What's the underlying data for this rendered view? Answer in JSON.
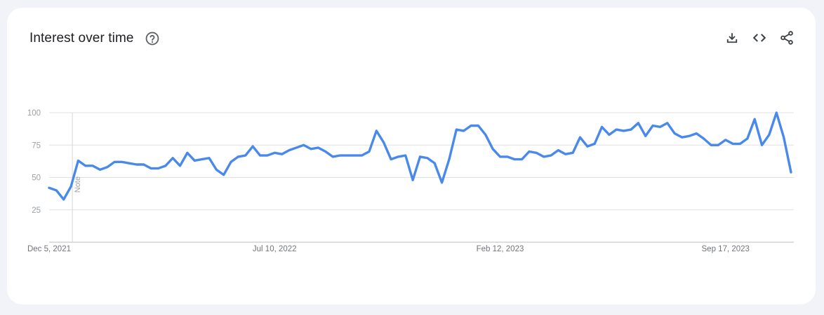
{
  "header": {
    "title": "Interest over time",
    "help_icon": "help-circle-icon",
    "actions": [
      {
        "name": "download-icon"
      },
      {
        "name": "embed-code-icon"
      },
      {
        "name": "share-icon"
      }
    ]
  },
  "colors": {
    "line": "#4a89ec",
    "grid": "#e0e0e0",
    "axis": "#bdbdbd"
  },
  "chart_data": {
    "type": "line",
    "title": "Interest over time",
    "xlabel": "",
    "ylabel": "",
    "ylim": [
      0,
      100
    ],
    "yticks": [
      25,
      50,
      75,
      100
    ],
    "xtick_labels": [
      "Dec 5, 2021",
      "Jul 10, 2022",
      "Feb 12, 2023",
      "Sep 17, 2023"
    ],
    "xtick_indices": [
      0,
      31,
      62,
      93
    ],
    "annotation": {
      "label": "Note",
      "index": 3
    },
    "grid": true,
    "legend": "none",
    "series": [
      {
        "values": [
          42,
          40,
          33,
          43,
          63,
          59,
          59,
          56,
          58,
          62,
          62,
          61,
          60,
          60,
          57,
          57,
          59,
          65,
          59,
          69,
          63,
          64,
          65,
          56,
          52,
          62,
          66,
          67,
          74,
          67,
          67,
          69,
          68,
          71,
          73,
          75,
          72,
          73,
          70,
          66,
          67,
          67,
          67,
          67,
          70,
          86,
          77,
          64,
          66,
          67,
          48,
          66,
          65,
          61,
          46,
          64,
          87,
          86,
          90,
          90,
          83,
          72,
          66,
          66,
          64,
          64,
          70,
          69,
          66,
          67,
          71,
          68,
          69,
          81,
          74,
          76,
          89,
          83,
          87,
          86,
          87,
          92,
          82,
          90,
          89,
          92,
          84,
          81,
          82,
          84,
          80,
          75,
          75,
          79,
          76,
          76,
          80,
          95,
          75,
          83,
          100,
          81,
          54
        ]
      }
    ]
  }
}
